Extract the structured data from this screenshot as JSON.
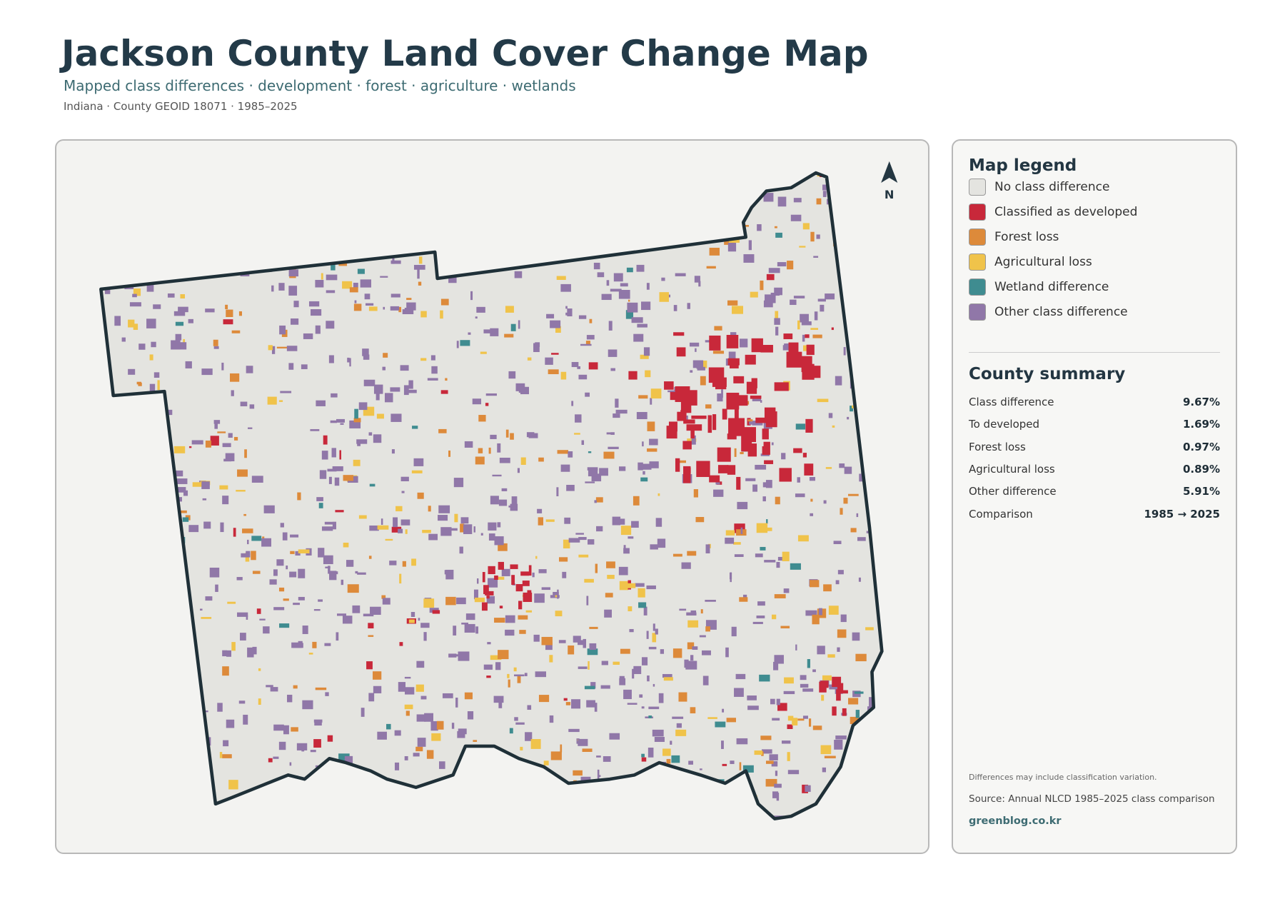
{
  "header": {
    "title": "Jackson County Land Cover Change Map",
    "subtitle": "Mapped class differences · development · forest · agriculture · wetlands",
    "meta": "Indiana · County GEOID 18071 · 1985–2025"
  },
  "map": {
    "north_label": "N"
  },
  "legend": {
    "title": "Map legend",
    "items": [
      {
        "label": "No class difference",
        "color": "#e4e4e0"
      },
      {
        "label": "Classified as developed",
        "color": "#c8283a"
      },
      {
        "label": "Forest loss",
        "color": "#dd8a3a"
      },
      {
        "label": "Agricultural loss",
        "color": "#f0c34a"
      },
      {
        "label": "Wetland difference",
        "color": "#3f8c90"
      },
      {
        "label": "Other class difference",
        "color": "#9077a8"
      }
    ]
  },
  "summary": {
    "title": "County summary",
    "rows": [
      [
        "Class difference",
        "9.67%"
      ],
      [
        "To developed",
        "1.69%"
      ],
      [
        "Forest loss",
        "0.97%"
      ],
      [
        "Agricultural loss",
        "0.89%"
      ],
      [
        "Other difference",
        "5.91%"
      ],
      [
        "Comparison",
        "1985 → 2025"
      ]
    ]
  },
  "footer": {
    "note": "Differences may include classification variation.",
    "source": "Source: Annual NLCD 1985–2025 class comparison",
    "credit": "greenblog.co.kr"
  }
}
